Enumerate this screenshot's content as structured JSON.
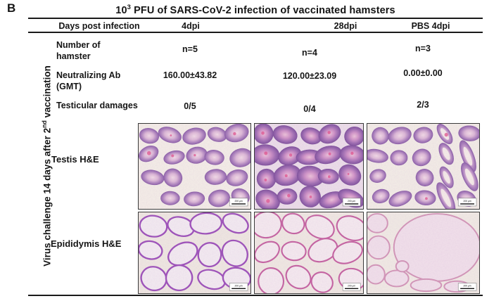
{
  "figure": {
    "panel_label": "B",
    "title_base": "10",
    "title_exp": "3",
    "title_rest": " PFU of SARS-CoV-2 infection of vaccinated hamsters",
    "side_label_prefix": "Virus challenge 14 days after 2",
    "side_label_sup": "nd",
    "side_label_suffix": " vaccination"
  },
  "table": {
    "row_header": "Days post infection",
    "columns": [
      "4dpi",
      "28dpi",
      "PBS 4dpi"
    ],
    "rows": [
      {
        "label": "Number of hamster",
        "values": [
          "n=5",
          "n=4",
          "n=3"
        ]
      },
      {
        "label": "Neutralizing Ab (GMT)",
        "values": [
          "160.00±43.82",
          "120.00±23.09",
          "0.00±0.00"
        ]
      },
      {
        "label": "Testicular damages",
        "values": [
          "0/5",
          "0/4",
          "2/3"
        ]
      },
      {
        "label": "Testis H&E"
      },
      {
        "label": "Epididymis H&E"
      }
    ],
    "scale_bar_label": "200 μm"
  }
}
